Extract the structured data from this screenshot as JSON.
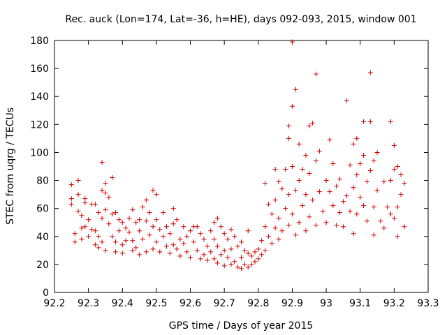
{
  "chart_data": {
    "type": "scatter",
    "title": "Rec. auck (Lon=174, Lat=-36, h=HE), days 092-093, 2015, window 001",
    "xlabel": "GPS time / Days of year 2015",
    "ylabel": "STEC from uqrg / TECUs",
    "xlim": [
      92.2,
      93.3
    ],
    "ylim": [
      0,
      180
    ],
    "xticks": [
      "92.2",
      "92.3",
      "92.4",
      "92.5",
      "92.6",
      "92.7",
      "92.8",
      "92.9",
      "93",
      "93.1",
      "93.2",
      "93.3"
    ],
    "yticks": [
      "0",
      "20",
      "40",
      "60",
      "80",
      "100",
      "120",
      "140",
      "160",
      "180"
    ],
    "grid": false,
    "marker": "plus",
    "color": "#cc0000",
    "series": [
      {
        "points": [
          [
            92.25,
            77
          ],
          [
            92.25,
            67
          ],
          [
            92.25,
            63
          ],
          [
            92.26,
            42
          ],
          [
            92.26,
            36
          ],
          [
            92.27,
            80
          ],
          [
            92.27,
            70
          ],
          [
            92.27,
            58
          ],
          [
            92.28,
            55
          ],
          [
            92.28,
            46
          ],
          [
            92.28,
            38
          ],
          [
            92.29,
            67
          ],
          [
            92.29,
            64
          ],
          [
            92.29,
            47
          ],
          [
            92.3,
            52
          ],
          [
            92.3,
            40
          ],
          [
            92.31,
            63
          ],
          [
            92.31,
            45
          ],
          [
            92.32,
            63
          ],
          [
            92.32,
            44
          ],
          [
            92.32,
            34
          ],
          [
            92.33,
            57
          ],
          [
            92.33,
            40
          ],
          [
            92.33,
            32
          ],
          [
            92.34,
            93
          ],
          [
            92.34,
            73
          ],
          [
            92.34,
            53
          ],
          [
            92.34,
            36
          ],
          [
            92.35,
            78
          ],
          [
            92.35,
            71
          ],
          [
            92.35,
            59
          ],
          [
            92.35,
            30
          ],
          [
            92.36,
            68
          ],
          [
            92.36,
            49
          ],
          [
            92.37,
            82
          ],
          [
            92.37,
            56
          ],
          [
            92.37,
            40
          ],
          [
            92.38,
            57
          ],
          [
            92.38,
            36
          ],
          [
            92.38,
            29
          ],
          [
            92.39,
            52
          ],
          [
            92.39,
            44
          ],
          [
            92.4,
            50
          ],
          [
            92.4,
            34
          ],
          [
            92.4,
            28
          ],
          [
            92.41,
            46
          ],
          [
            92.41,
            37
          ],
          [
            92.42,
            53
          ],
          [
            92.42,
            43
          ],
          [
            92.43,
            59
          ],
          [
            92.43,
            37
          ],
          [
            92.43,
            30
          ],
          [
            92.44,
            50
          ],
          [
            92.44,
            32
          ],
          [
            92.45,
            52
          ],
          [
            92.45,
            44
          ],
          [
            92.45,
            27
          ],
          [
            92.46,
            61
          ],
          [
            92.46,
            38
          ],
          [
            92.47,
            66
          ],
          [
            92.47,
            51
          ],
          [
            92.47,
            29
          ],
          [
            92.48,
            57
          ],
          [
            92.48,
            41
          ],
          [
            92.49,
            73
          ],
          [
            92.49,
            47
          ],
          [
            92.49,
            31
          ],
          [
            92.5,
            70
          ],
          [
            92.5,
            52
          ],
          [
            92.5,
            36
          ],
          [
            92.51,
            45
          ],
          [
            92.51,
            29
          ],
          [
            92.52,
            57
          ],
          [
            92.52,
            40
          ],
          [
            92.53,
            47
          ],
          [
            92.53,
            33
          ],
          [
            92.54,
            42
          ],
          [
            92.54,
            28
          ],
          [
            92.55,
            60
          ],
          [
            92.55,
            49
          ],
          [
            92.55,
            34
          ],
          [
            92.56,
            52
          ],
          [
            92.56,
            31
          ],
          [
            92.57,
            38
          ],
          [
            92.57,
            26
          ],
          [
            92.58,
            47
          ],
          [
            92.58,
            35
          ],
          [
            92.59,
            40
          ],
          [
            92.59,
            29
          ],
          [
            92.6,
            44
          ],
          [
            92.6,
            25
          ],
          [
            92.61,
            47
          ],
          [
            92.61,
            36
          ],
          [
            92.62,
            47
          ],
          [
            92.62,
            30
          ],
          [
            92.63,
            42
          ],
          [
            92.63,
            24
          ],
          [
            92.64,
            38
          ],
          [
            92.64,
            27
          ],
          [
            92.65,
            33
          ],
          [
            92.65,
            23
          ],
          [
            92.66,
            44
          ],
          [
            92.66,
            29
          ],
          [
            92.67,
            50
          ],
          [
            92.67,
            38
          ],
          [
            92.67,
            24
          ],
          [
            92.68,
            53
          ],
          [
            92.68,
            33
          ],
          [
            92.68,
            21
          ],
          [
            92.69,
            47
          ],
          [
            92.69,
            27
          ],
          [
            92.7,
            42
          ],
          [
            92.7,
            30
          ],
          [
            92.7,
            19
          ],
          [
            92.71,
            38
          ],
          [
            92.71,
            25
          ],
          [
            92.72,
            45
          ],
          [
            92.72,
            31
          ],
          [
            92.72,
            20
          ],
          [
            92.73,
            40
          ],
          [
            92.73,
            22
          ],
          [
            92.74,
            33
          ],
          [
            92.74,
            18
          ],
          [
            92.75,
            36
          ],
          [
            92.75,
            25
          ],
          [
            92.75,
            17
          ],
          [
            92.76,
            30
          ],
          [
            92.76,
            20
          ],
          [
            92.77,
            44
          ],
          [
            92.77,
            28
          ],
          [
            92.77,
            18
          ],
          [
            92.78,
            26
          ],
          [
            92.78,
            20
          ],
          [
            92.79,
            29
          ],
          [
            92.79,
            22
          ],
          [
            92.8,
            31
          ],
          [
            92.8,
            24
          ],
          [
            92.81,
            37
          ],
          [
            92.81,
            27
          ],
          [
            92.82,
            78
          ],
          [
            92.82,
            47
          ],
          [
            92.82,
            30
          ],
          [
            92.83,
            63
          ],
          [
            92.83,
            40
          ],
          [
            92.84,
            56
          ],
          [
            92.84,
            35
          ],
          [
            92.85,
            88
          ],
          [
            92.85,
            66
          ],
          [
            92.85,
            46
          ],
          [
            92.86,
            79
          ],
          [
            92.86,
            53
          ],
          [
            92.86,
            38
          ],
          [
            92.87,
            74
          ],
          [
            92.87,
            44
          ],
          [
            92.88,
            88
          ],
          [
            92.88,
            60
          ],
          [
            92.89,
            119
          ],
          [
            92.89,
            110
          ],
          [
            92.89,
            70
          ],
          [
            92.89,
            48
          ],
          [
            92.9,
            179
          ],
          [
            92.9,
            133
          ],
          [
            92.9,
            90
          ],
          [
            92.9,
            56
          ],
          [
            92.91,
            145
          ],
          [
            92.91,
            73
          ],
          [
            92.91,
            41
          ],
          [
            92.92,
            106
          ],
          [
            92.92,
            80
          ],
          [
            92.92,
            50
          ],
          [
            92.93,
            88
          ],
          [
            92.93,
            62
          ],
          [
            92.94,
            98
          ],
          [
            92.94,
            70
          ],
          [
            92.94,
            44
          ],
          [
            92.95,
            119
          ],
          [
            92.95,
            85
          ],
          [
            92.95,
            54
          ],
          [
            92.96,
            121
          ],
          [
            92.96,
            66
          ],
          [
            92.97,
            156
          ],
          [
            92.97,
            94
          ],
          [
            92.97,
            48
          ],
          [
            92.98,
            101
          ],
          [
            92.98,
            72
          ],
          [
            92.99,
            58
          ],
          [
            93.0,
            80
          ],
          [
            93.0,
            50
          ],
          [
            93.01,
            109
          ],
          [
            93.01,
            72
          ],
          [
            93.02,
            92
          ],
          [
            93.02,
            62
          ],
          [
            93.03,
            76
          ],
          [
            93.03,
            48
          ],
          [
            93.04,
            81
          ],
          [
            93.04,
            57
          ],
          [
            93.05,
            65
          ],
          [
            93.05,
            47
          ],
          [
            93.06,
            137
          ],
          [
            93.06,
            69
          ],
          [
            93.07,
            91
          ],
          [
            93.07,
            58
          ],
          [
            93.08,
            106
          ],
          [
            93.08,
            75
          ],
          [
            93.08,
            42
          ],
          [
            93.09,
            110
          ],
          [
            93.09,
            84
          ],
          [
            93.09,
            56
          ],
          [
            93.1,
            92
          ],
          [
            93.1,
            68
          ],
          [
            93.11,
            122
          ],
          [
            93.11,
            98
          ],
          [
            93.11,
            62
          ],
          [
            93.12,
            79
          ],
          [
            93.12,
            51
          ],
          [
            93.13,
            157
          ],
          [
            93.13,
            122
          ],
          [
            93.13,
            87
          ],
          [
            93.14,
            94
          ],
          [
            93.14,
            61
          ],
          [
            93.14,
            41
          ],
          [
            93.15,
            100
          ],
          [
            93.15,
            73
          ],
          [
            93.16,
            51
          ],
          [
            93.17,
            79
          ],
          [
            93.17,
            46
          ],
          [
            93.18,
            61
          ],
          [
            93.19,
            122
          ],
          [
            93.19,
            80
          ],
          [
            93.19,
            56
          ],
          [
            93.2,
            105
          ],
          [
            93.2,
            88
          ],
          [
            93.2,
            53
          ],
          [
            93.21,
            90
          ],
          [
            93.21,
            61
          ],
          [
            93.21,
            40
          ],
          [
            93.22,
            84
          ],
          [
            93.22,
            70
          ],
          [
            93.23,
            78
          ],
          [
            93.23,
            47
          ]
        ]
      }
    ]
  }
}
